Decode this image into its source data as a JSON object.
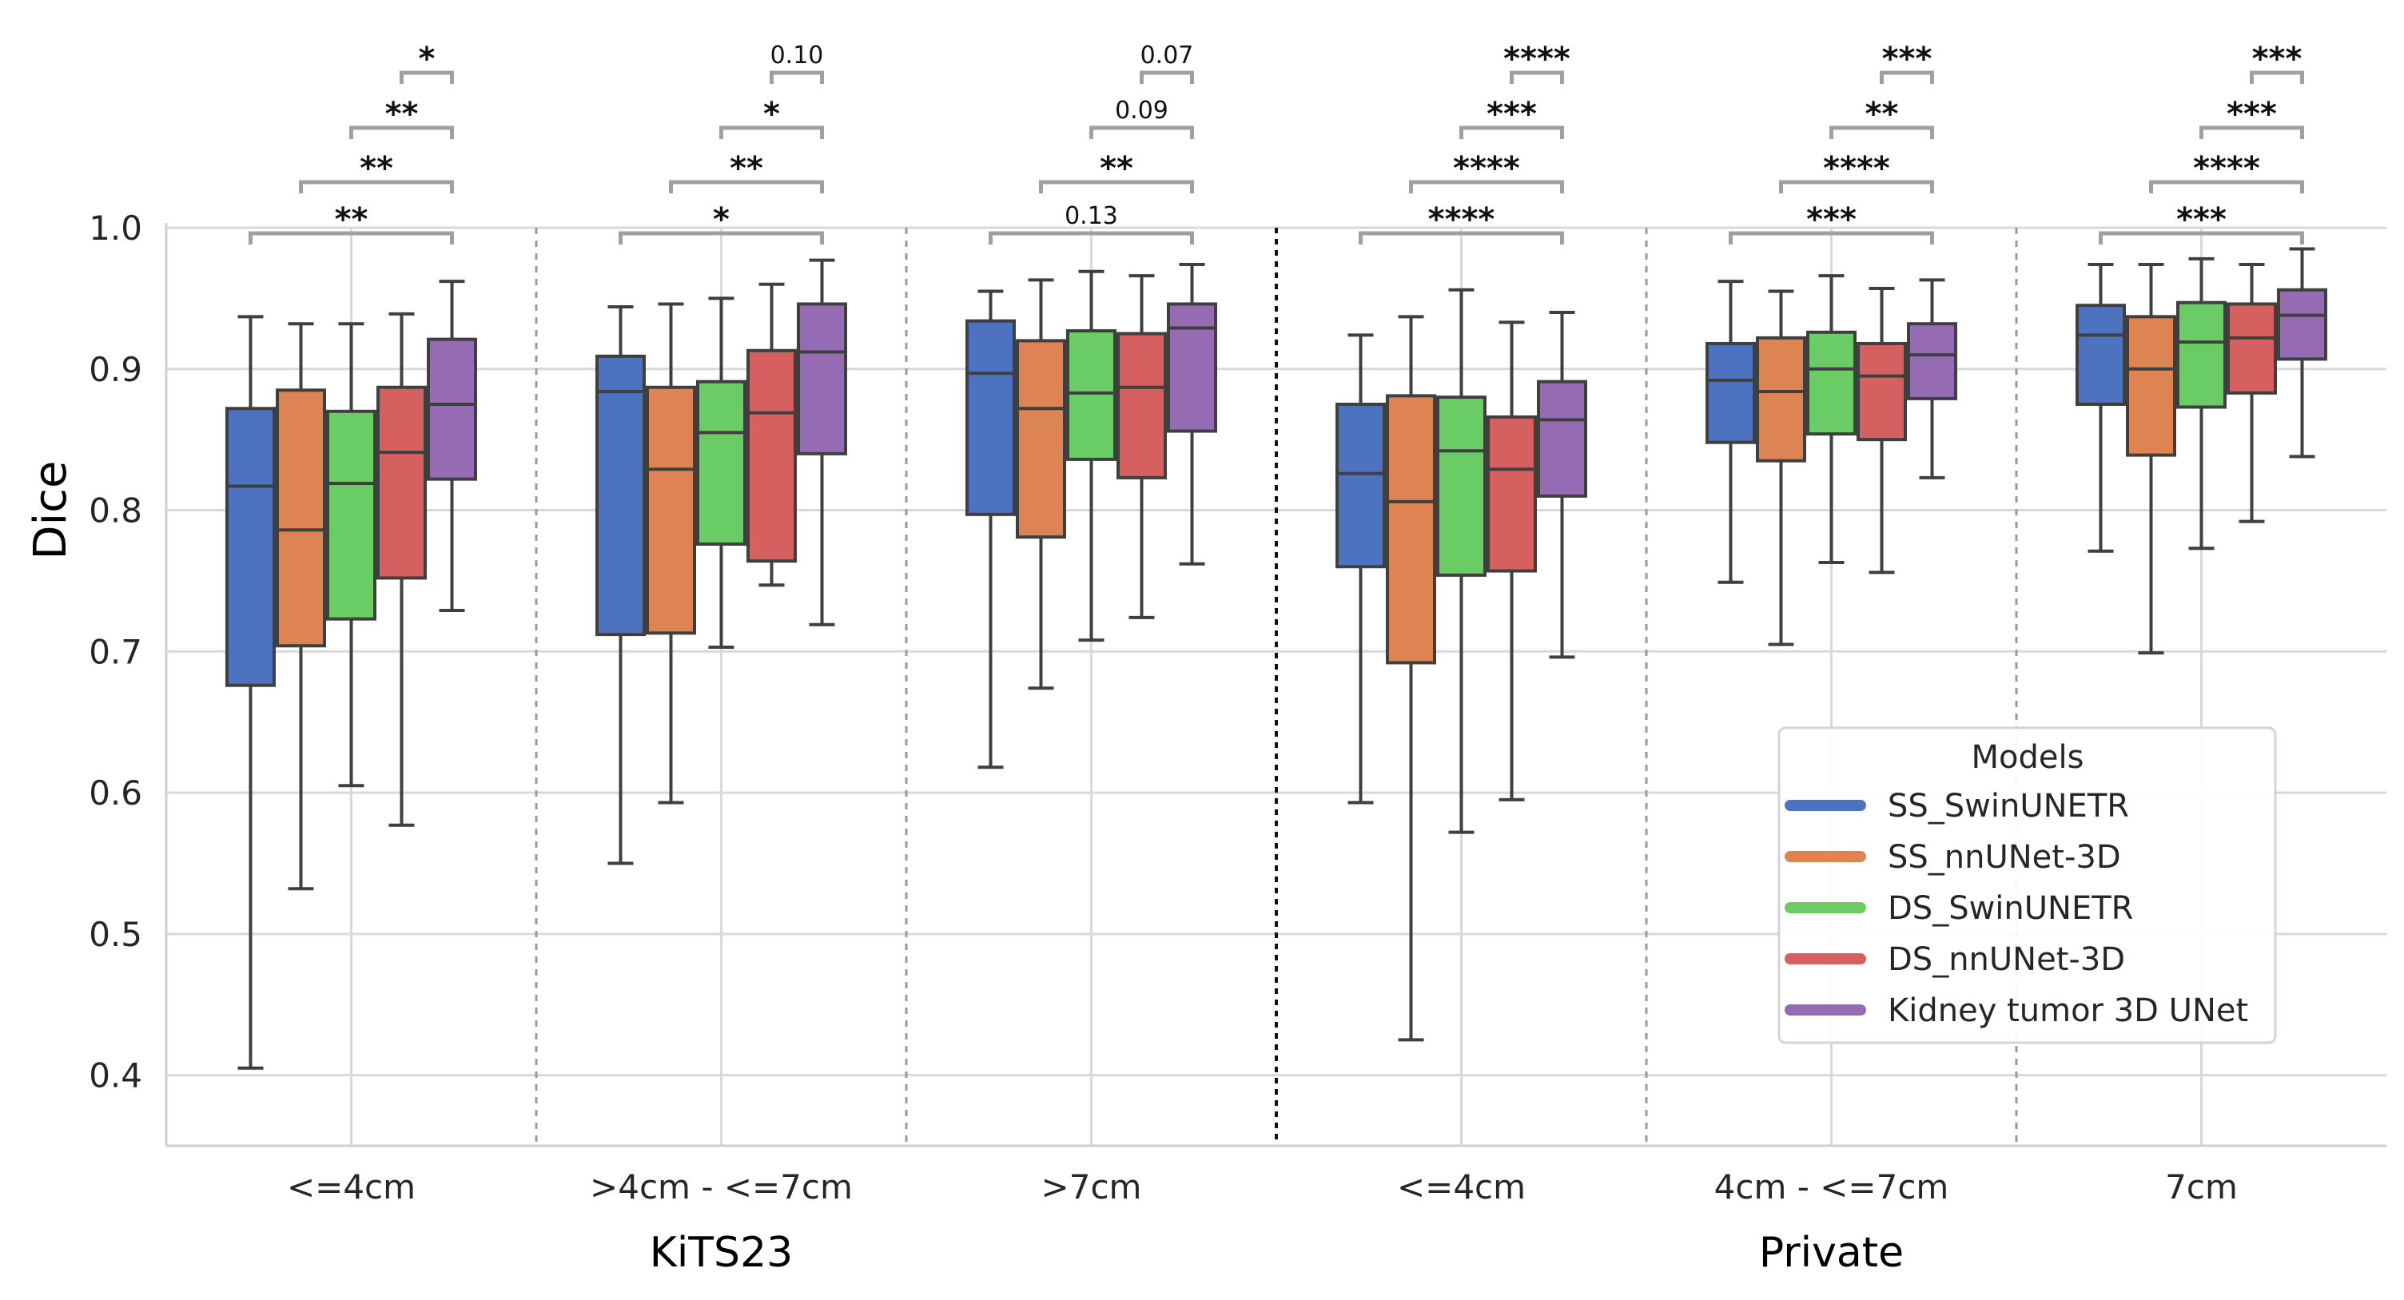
{
  "chart_data": {
    "type": "box",
    "ylabel": "Dice",
    "ylim": [
      0.35,
      1.0
    ],
    "yticks": [
      "0.4",
      "0.5",
      "0.6",
      "0.7",
      "0.8",
      "0.9",
      "1.0"
    ],
    "grid": true,
    "legend": {
      "title": "Models",
      "placement": "lower-right"
    },
    "series": [
      {
        "name": "SS_SwinUNETR",
        "color": "#4c72c0"
      },
      {
        "name": "SS_nnUNet-3D",
        "color": "#dd8452"
      },
      {
        "name": "DS_SwinUNETR",
        "color": "#6acc64"
      },
      {
        "name": "DS_nnUNet-3D",
        "color": "#d65f5f"
      },
      {
        "name": "Kidney tumor 3D UNet",
        "color": "#956cb4"
      }
    ],
    "datasets": [
      {
        "label": "KiTS23",
        "categories": [
          "<=4cm",
          ">4cm - <=7cm",
          ">7cm"
        ]
      },
      {
        "label": "Private",
        "categories": [
          "<=4cm",
          "4cm - <=7cm",
          "7cm"
        ]
      }
    ],
    "groups": [
      {
        "category": "<=4cm",
        "boxes": [
          {
            "whislo": 0.405,
            "q1": 0.676,
            "med": 0.817,
            "q3": 0.872,
            "whishi": 0.937
          },
          {
            "whislo": 0.532,
            "q1": 0.704,
            "med": 0.786,
            "q3": 0.885,
            "whishi": 0.932
          },
          {
            "whislo": 0.605,
            "q1": 0.723,
            "med": 0.819,
            "q3": 0.87,
            "whishi": 0.932
          },
          {
            "whislo": 0.577,
            "q1": 0.752,
            "med": 0.841,
            "q3": 0.887,
            "whishi": 0.939
          },
          {
            "whislo": 0.729,
            "q1": 0.822,
            "med": 0.875,
            "q3": 0.921,
            "whishi": 0.962
          }
        ],
        "annotations": [
          "**",
          "**",
          "**",
          "*"
        ]
      },
      {
        "category": ">4cm - <=7cm",
        "boxes": [
          {
            "whislo": 0.55,
            "q1": 0.712,
            "med": 0.884,
            "q3": 0.909,
            "whishi": 0.944
          },
          {
            "whislo": 0.593,
            "q1": 0.713,
            "med": 0.829,
            "q3": 0.887,
            "whishi": 0.946
          },
          {
            "whislo": 0.703,
            "q1": 0.776,
            "med": 0.855,
            "q3": 0.891,
            "whishi": 0.95
          },
          {
            "whislo": 0.747,
            "q1": 0.764,
            "med": 0.869,
            "q3": 0.913,
            "whishi": 0.96
          },
          {
            "whislo": 0.719,
            "q1": 0.84,
            "med": 0.912,
            "q3": 0.946,
            "whishi": 0.977
          }
        ],
        "annotations": [
          "*",
          "**",
          "*",
          "0.10"
        ]
      },
      {
        "category": ">7cm",
        "boxes": [
          {
            "whislo": 0.618,
            "q1": 0.797,
            "med": 0.897,
            "q3": 0.934,
            "whishi": 0.955
          },
          {
            "whislo": 0.674,
            "q1": 0.781,
            "med": 0.872,
            "q3": 0.92,
            "whishi": 0.963
          },
          {
            "whislo": 0.708,
            "q1": 0.836,
            "med": 0.883,
            "q3": 0.927,
            "whishi": 0.969
          },
          {
            "whislo": 0.724,
            "q1": 0.823,
            "med": 0.887,
            "q3": 0.925,
            "whishi": 0.966
          },
          {
            "whislo": 0.762,
            "q1": 0.856,
            "med": 0.929,
            "q3": 0.946,
            "whishi": 0.974
          }
        ],
        "annotations": [
          "0.13",
          "**",
          "0.09",
          "0.07"
        ]
      },
      {
        "category": "<=4cm",
        "boxes": [
          {
            "whislo": 0.593,
            "q1": 0.76,
            "med": 0.826,
            "q3": 0.875,
            "whishi": 0.924
          },
          {
            "whislo": 0.425,
            "q1": 0.692,
            "med": 0.806,
            "q3": 0.881,
            "whishi": 0.937
          },
          {
            "whislo": 0.572,
            "q1": 0.754,
            "med": 0.842,
            "q3": 0.88,
            "whishi": 0.956
          },
          {
            "whislo": 0.595,
            "q1": 0.757,
            "med": 0.829,
            "q3": 0.866,
            "whishi": 0.933
          },
          {
            "whislo": 0.696,
            "q1": 0.81,
            "med": 0.864,
            "q3": 0.891,
            "whishi": 0.94
          }
        ],
        "annotations": [
          "****",
          "****",
          "***",
          "****"
        ]
      },
      {
        "category": "4cm - <=7cm",
        "boxes": [
          {
            "whislo": 0.749,
            "q1": 0.848,
            "med": 0.892,
            "q3": 0.918,
            "whishi": 0.962
          },
          {
            "whislo": 0.705,
            "q1": 0.835,
            "med": 0.884,
            "q3": 0.922,
            "whishi": 0.955
          },
          {
            "whislo": 0.763,
            "q1": 0.854,
            "med": 0.9,
            "q3": 0.926,
            "whishi": 0.966
          },
          {
            "whislo": 0.756,
            "q1": 0.85,
            "med": 0.895,
            "q3": 0.918,
            "whishi": 0.957
          },
          {
            "whislo": 0.823,
            "q1": 0.879,
            "med": 0.91,
            "q3": 0.932,
            "whishi": 0.963
          }
        ],
        "annotations": [
          "***",
          "****",
          "**",
          "***"
        ]
      },
      {
        "category": "7cm",
        "boxes": [
          {
            "whislo": 0.771,
            "q1": 0.875,
            "med": 0.924,
            "q3": 0.945,
            "whishi": 0.974
          },
          {
            "whislo": 0.699,
            "q1": 0.839,
            "med": 0.9,
            "q3": 0.937,
            "whishi": 0.974
          },
          {
            "whislo": 0.773,
            "q1": 0.873,
            "med": 0.919,
            "q3": 0.947,
            "whishi": 0.978
          },
          {
            "whislo": 0.792,
            "q1": 0.883,
            "med": 0.922,
            "q3": 0.946,
            "whishi": 0.974
          },
          {
            "whislo": 0.838,
            "q1": 0.907,
            "med": 0.938,
            "q3": 0.956,
            "whishi": 0.985
          }
        ],
        "annotations": [
          "***",
          "****",
          "***",
          "***"
        ]
      }
    ]
  }
}
